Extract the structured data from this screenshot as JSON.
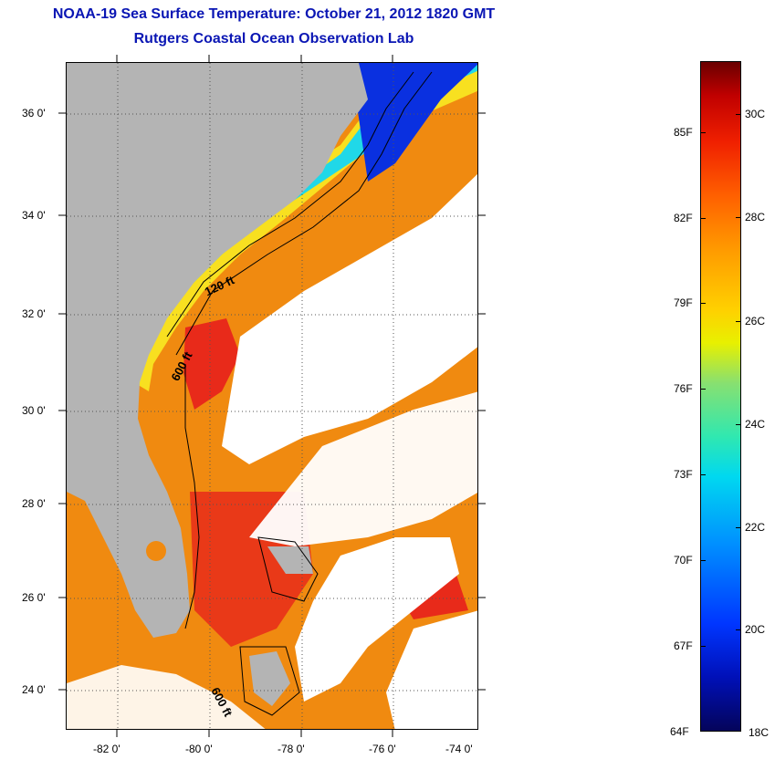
{
  "header": {
    "title": "NOAA-19 Sea Surface Temperature:  October 21, 2012 1820 GMT",
    "subtitle": "Rutgers Coastal Ocean Observation Lab"
  },
  "map": {
    "lat_labels": [
      "36 0'",
      "34 0'",
      "32 0'",
      "30 0'",
      "28 0'",
      "26 0'",
      "24 0'"
    ],
    "lon_labels": [
      "-82 0'",
      "-80 0'",
      "-78 0'",
      "-76 0'",
      "-74 0'"
    ],
    "contour_labels": [
      "120 ft",
      "600 ft",
      "600 ft"
    ],
    "colors": {
      "land": "#b4b4b4",
      "cloud": "#ffffff",
      "warm_water": "#f08a10",
      "hot_water": "#e82a1a",
      "shelf_water": "#f8e020",
      "cool_water": "#20d8e8",
      "cold_water": "#0a30e0"
    }
  },
  "colorbar": {
    "fahrenheit_labels": [
      "85F",
      "82F",
      "79F",
      "76F",
      "73F",
      "70F",
      "67F",
      "64F"
    ],
    "celsius_labels": [
      "30C",
      "28C",
      "26C",
      "24C",
      "22C",
      "20C",
      "18C"
    ],
    "range_f": [
      64,
      87
    ],
    "range_c": [
      18,
      31
    ]
  }
}
